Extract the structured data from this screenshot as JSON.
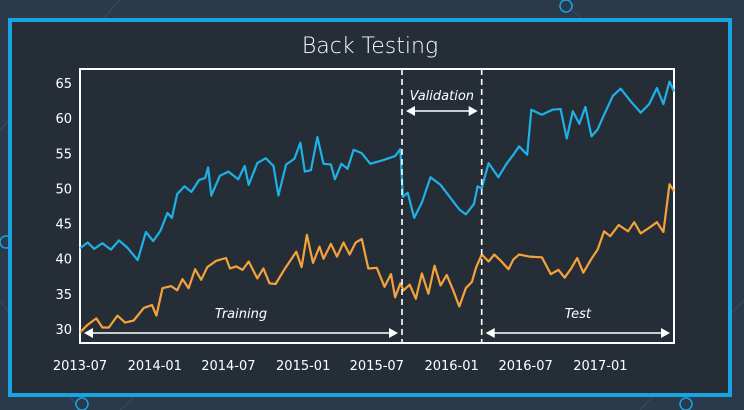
{
  "colors": {
    "page_bg": "#2b3a4a",
    "frame_border": "#1aa3e3",
    "plot_bg": "#252e37",
    "series_blue": "#1fb1e6",
    "series_orange": "#f6a23c"
  },
  "chart_data": {
    "type": "line",
    "title": "Back Testing",
    "xlabel": "",
    "ylabel": "",
    "ylim": [
      28,
      67
    ],
    "xlim": [
      "2013-07-01",
      "2017-07-01"
    ],
    "yticks": [
      30,
      35,
      40,
      45,
      50,
      55,
      60,
      65
    ],
    "xticks": [
      "2013-07",
      "2014-01",
      "2014-07",
      "2015-01",
      "2015-07",
      "2016-01",
      "2016-07",
      "2017-01"
    ],
    "grid": false,
    "legend": "none",
    "segments": [
      {
        "label": "Training",
        "start": "2013-07-01",
        "end": "2015-09-01"
      },
      {
        "label": "Validation",
        "start": "2015-09-01",
        "end": "2016-03-15"
      },
      {
        "label": "Test",
        "start": "2016-03-15",
        "end": "2017-07-01"
      }
    ],
    "series": [
      {
        "color": "#1fb1e6",
        "points": [
          [
            "2013-07-01",
            41.5
          ],
          [
            "2013-07-20",
            42.3
          ],
          [
            "2013-08-05",
            41.4
          ],
          [
            "2013-08-25",
            42.2
          ],
          [
            "2013-09-15",
            41.3
          ],
          [
            "2013-10-05",
            42.6
          ],
          [
            "2013-10-25",
            41.6
          ],
          [
            "2013-11-20",
            39.8
          ],
          [
            "2013-12-10",
            43.8
          ],
          [
            "2013-12-28",
            42.5
          ],
          [
            "2014-01-15",
            44.0
          ],
          [
            "2014-02-01",
            46.5
          ],
          [
            "2014-02-12",
            45.8
          ],
          [
            "2014-02-25",
            49.2
          ],
          [
            "2014-03-15",
            50.3
          ],
          [
            "2014-04-01",
            49.5
          ],
          [
            "2014-04-20",
            51.2
          ],
          [
            "2014-05-05",
            51.5
          ],
          [
            "2014-05-12",
            53.0
          ],
          [
            "2014-05-20",
            49.0
          ],
          [
            "2014-06-10",
            51.8
          ],
          [
            "2014-07-01",
            52.4
          ],
          [
            "2014-07-25",
            51.3
          ],
          [
            "2014-08-10",
            53.2
          ],
          [
            "2014-08-20",
            50.5
          ],
          [
            "2014-09-10",
            53.6
          ],
          [
            "2014-10-01",
            54.3
          ],
          [
            "2014-10-20",
            53.2
          ],
          [
            "2014-11-01",
            49.0
          ],
          [
            "2014-11-20",
            53.4
          ],
          [
            "2014-12-10",
            54.2
          ],
          [
            "2014-12-25",
            56.5
          ],
          [
            "2015-01-05",
            52.4
          ],
          [
            "2015-01-20",
            52.6
          ],
          [
            "2015-02-05",
            57.3
          ],
          [
            "2015-02-20",
            53.5
          ],
          [
            "2015-03-10",
            53.4
          ],
          [
            "2015-03-20",
            51.3
          ],
          [
            "2015-04-05",
            53.5
          ],
          [
            "2015-04-20",
            52.8
          ],
          [
            "2015-05-05",
            55.5
          ],
          [
            "2015-05-25",
            55.0
          ],
          [
            "2015-06-15",
            53.5
          ],
          [
            "2015-07-15",
            54.0
          ],
          [
            "2015-08-15",
            54.6
          ],
          [
            "2015-08-28",
            55.6
          ],
          [
            "2015-09-03",
            48.8
          ],
          [
            "2015-09-15",
            49.4
          ],
          [
            "2015-10-01",
            45.8
          ],
          [
            "2015-10-20",
            48.0
          ],
          [
            "2015-11-10",
            51.6
          ],
          [
            "2015-12-05",
            50.5
          ],
          [
            "2016-01-20",
            47.0
          ],
          [
            "2016-02-05",
            46.3
          ],
          [
            "2016-02-25",
            47.8
          ],
          [
            "2016-03-05",
            50.3
          ],
          [
            "2016-03-15",
            50.0
          ],
          [
            "2016-04-01",
            53.6
          ],
          [
            "2016-04-25",
            51.6
          ],
          [
            "2016-05-15",
            53.5
          ],
          [
            "2016-06-01",
            54.8
          ],
          [
            "2016-06-15",
            56.0
          ],
          [
            "2016-07-05",
            54.8
          ],
          [
            "2016-07-15",
            61.2
          ],
          [
            "2016-08-10",
            60.5
          ],
          [
            "2016-09-05",
            61.2
          ],
          [
            "2016-09-25",
            61.3
          ],
          [
            "2016-10-10",
            57.1
          ],
          [
            "2016-10-25",
            61.0
          ],
          [
            "2016-11-10",
            59.2
          ],
          [
            "2016-11-25",
            61.6
          ],
          [
            "2016-12-10",
            57.4
          ],
          [
            "2016-12-25",
            58.4
          ],
          [
            "2017-01-10",
            60.5
          ],
          [
            "2017-02-01",
            63.2
          ],
          [
            "2017-02-20",
            64.2
          ],
          [
            "2017-03-15",
            62.5
          ],
          [
            "2017-04-10",
            60.8
          ],
          [
            "2017-05-01",
            62.0
          ],
          [
            "2017-05-20",
            64.3
          ],
          [
            "2017-06-05",
            62.0
          ],
          [
            "2017-06-20",
            65.2
          ],
          [
            "2017-07-01",
            63.8
          ]
        ]
      },
      {
        "color": "#f6a23c",
        "points": [
          [
            "2013-07-01",
            29.5
          ],
          [
            "2013-07-20",
            30.6
          ],
          [
            "2013-08-10",
            31.5
          ],
          [
            "2013-08-25",
            30.2
          ],
          [
            "2013-09-10",
            30.2
          ],
          [
            "2013-10-01",
            31.9
          ],
          [
            "2013-10-20",
            30.9
          ],
          [
            "2013-11-10",
            31.2
          ],
          [
            "2013-12-05",
            33.0
          ],
          [
            "2013-12-25",
            33.4
          ],
          [
            "2014-01-05",
            31.9
          ],
          [
            "2014-01-20",
            35.8
          ],
          [
            "2014-02-10",
            36.1
          ],
          [
            "2014-02-25",
            35.5
          ],
          [
            "2014-03-10",
            37.1
          ],
          [
            "2014-03-25",
            35.8
          ],
          [
            "2014-04-10",
            38.5
          ],
          [
            "2014-04-25",
            37.0
          ],
          [
            "2014-05-10",
            38.8
          ],
          [
            "2014-06-01",
            39.7
          ],
          [
            "2014-06-25",
            40.1
          ],
          [
            "2014-07-05",
            38.6
          ],
          [
            "2014-07-20",
            38.9
          ],
          [
            "2014-08-05",
            38.4
          ],
          [
            "2014-08-20",
            39.6
          ],
          [
            "2014-09-10",
            37.2
          ],
          [
            "2014-09-25",
            38.6
          ],
          [
            "2014-10-10",
            36.5
          ],
          [
            "2014-10-25",
            36.4
          ],
          [
            "2014-11-15",
            38.4
          ],
          [
            "2014-12-15",
            41.0
          ],
          [
            "2014-12-28",
            38.8
          ],
          [
            "2015-01-10",
            43.4
          ],
          [
            "2015-01-25",
            39.4
          ],
          [
            "2015-02-10",
            41.7
          ],
          [
            "2015-02-20",
            40.0
          ],
          [
            "2015-03-10",
            42.1
          ],
          [
            "2015-03-25",
            40.3
          ],
          [
            "2015-04-10",
            42.3
          ],
          [
            "2015-04-25",
            40.6
          ],
          [
            "2015-05-10",
            42.3
          ],
          [
            "2015-05-25",
            42.8
          ],
          [
            "2015-06-10",
            38.6
          ],
          [
            "2015-07-01",
            38.7
          ],
          [
            "2015-07-20",
            36.0
          ],
          [
            "2015-08-05",
            37.8
          ],
          [
            "2015-08-15",
            34.5
          ],
          [
            "2015-08-28",
            36.5
          ],
          [
            "2015-09-05",
            35.5
          ],
          [
            "2015-09-20",
            36.3
          ],
          [
            "2015-10-05",
            34.3
          ],
          [
            "2015-10-20",
            37.9
          ],
          [
            "2015-11-05",
            35.0
          ],
          [
            "2015-11-20",
            39.0
          ],
          [
            "2015-12-05",
            36.2
          ],
          [
            "2015-12-20",
            37.7
          ],
          [
            "2016-01-05",
            35.5
          ],
          [
            "2016-01-20",
            33.2
          ],
          [
            "2016-02-05",
            35.8
          ],
          [
            "2016-02-20",
            36.7
          ],
          [
            "2016-03-01",
            38.7
          ],
          [
            "2016-03-15",
            40.6
          ],
          [
            "2016-04-01",
            39.6
          ],
          [
            "2016-04-15",
            40.6
          ],
          [
            "2016-05-01",
            39.7
          ],
          [
            "2016-05-20",
            38.5
          ],
          [
            "2016-06-01",
            39.9
          ],
          [
            "2016-06-15",
            40.6
          ],
          [
            "2016-07-10",
            40.3
          ],
          [
            "2016-08-10",
            40.2
          ],
          [
            "2016-09-01",
            37.8
          ],
          [
            "2016-09-20",
            38.4
          ],
          [
            "2016-10-05",
            37.3
          ],
          [
            "2016-10-20",
            38.5
          ],
          [
            "2016-11-05",
            40.1
          ],
          [
            "2016-11-20",
            38.0
          ],
          [
            "2016-12-10",
            40.0
          ],
          [
            "2016-12-25",
            41.3
          ],
          [
            "2017-01-10",
            43.9
          ],
          [
            "2017-01-25",
            43.2
          ],
          [
            "2017-02-15",
            44.8
          ],
          [
            "2017-03-10",
            43.9
          ],
          [
            "2017-03-25",
            45.2
          ],
          [
            "2017-04-10",
            43.6
          ],
          [
            "2017-05-01",
            44.4
          ],
          [
            "2017-05-20",
            45.2
          ],
          [
            "2017-06-05",
            43.8
          ],
          [
            "2017-06-20",
            50.6
          ],
          [
            "2017-07-01",
            49.6
          ]
        ]
      }
    ]
  }
}
